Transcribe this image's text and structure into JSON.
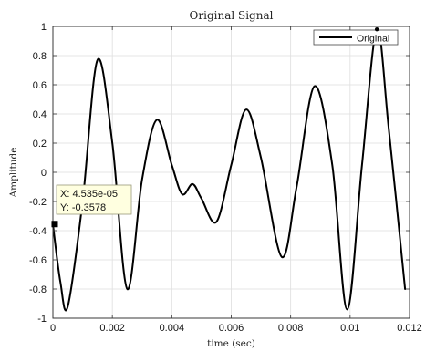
{
  "chart_data": {
    "type": "line",
    "title": "Original Signal",
    "xlabel": "time (sec)",
    "ylabel": "Amplitude",
    "xlim": [
      0,
      0.012
    ],
    "ylim": [
      -1,
      1
    ],
    "x_ticks": [
      0,
      0.002,
      0.004,
      0.006,
      0.008,
      0.01,
      0.012
    ],
    "x_tick_labels": [
      "0",
      "0.002",
      "0.004",
      "0.006",
      "0.008",
      "0.01",
      "0.012"
    ],
    "y_ticks": [
      -1,
      -0.8,
      -0.6,
      -0.4,
      -0.2,
      0,
      0.2,
      0.4,
      0.6,
      0.8,
      1
    ],
    "y_tick_labels": [
      "-1",
      "-0.8",
      "-0.6",
      "-0.4",
      "-0.2",
      "0",
      "0.2",
      "0.4",
      "0.6",
      "0.8",
      "1"
    ],
    "grid": true,
    "legend_position": "top-right",
    "series": [
      {
        "name": "Original",
        "color": "#000000",
        "x": [
          0,
          0.00025,
          0.0005,
          0.001,
          0.0015,
          0.002,
          0.0025,
          0.003,
          0.0035,
          0.004,
          0.00435,
          0.0047,
          0.005,
          0.0055,
          0.006,
          0.0065,
          0.007,
          0.0077,
          0.0082,
          0.0088,
          0.0094,
          0.0099,
          0.0104,
          0.0109,
          0.0113,
          0.01185
        ],
        "y": [
          -0.3578,
          -0.75,
          -0.92,
          -0.2,
          0.77,
          0.2,
          -0.8,
          -0.05,
          0.36,
          0.05,
          -0.15,
          -0.08,
          -0.18,
          -0.34,
          0.05,
          0.43,
          0.1,
          -0.58,
          -0.1,
          0.59,
          0.05,
          -0.94,
          0.05,
          0.98,
          0.3,
          -0.8
        ]
      }
    ],
    "datatip": {
      "x_text": "X: 4.535e-05",
      "y_text": "Y: -0.3578",
      "x": 4.535e-05,
      "y": -0.3578
    }
  }
}
